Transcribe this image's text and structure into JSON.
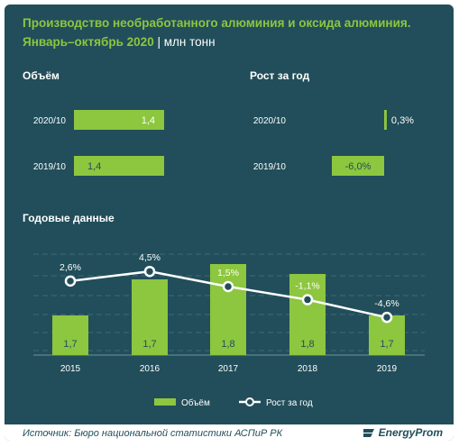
{
  "title_main": "Производство необработанного алюминия и оксида алюминия.",
  "title_period": "Январь–октябрь 2020",
  "title_separator": "|",
  "title_unit": "млн тонн",
  "sections": {
    "volume": "Объём",
    "growth": "Рост за год",
    "annual": "Годовые данные"
  },
  "legend": {
    "volume": "Объём",
    "growth": "Рост за год"
  },
  "footer": {
    "source": "Источник: Бюро национальной  статистики АСПиР РК",
    "logo": "EnergyProm"
  },
  "colors": {
    "background": "#214e5a",
    "bar": "#8dc63f",
    "line": "#ffffff",
    "title": "#8dc63f"
  },
  "chart_data": [
    {
      "type": "bar",
      "orientation": "horizontal",
      "title": "Объём",
      "categories": [
        "2020/10",
        "2019/10"
      ],
      "values": [
        1.4,
        1.4
      ],
      "labels": [
        "1,4",
        "1,4"
      ]
    },
    {
      "type": "bar",
      "orientation": "horizontal",
      "title": "Рост за год",
      "categories": [
        "2020/10",
        "2019/10"
      ],
      "values": [
        0.3,
        -6.0
      ],
      "labels": [
        "0,3%",
        "-6,0%"
      ]
    },
    {
      "type": "bar",
      "title": "Годовые данные",
      "categories": [
        "2015",
        "2016",
        "2017",
        "2018",
        "2019"
      ],
      "series": [
        {
          "name": "Объём",
          "values": [
            1.7,
            1.7,
            1.8,
            1.8,
            1.7
          ],
          "labels": [
            "1,7",
            "1,7",
            "1,8",
            "1,8",
            "1,7"
          ]
        },
        {
          "name": "Рост за год",
          "type": "line",
          "values": [
            2.6,
            4.5,
            1.5,
            -1.1,
            -4.6
          ],
          "labels": [
            "2,6%",
            "4,5%",
            "1,5%",
            "-1,1%",
            "-4,6%"
          ]
        }
      ],
      "grid": true,
      "legend": "bottom"
    }
  ]
}
